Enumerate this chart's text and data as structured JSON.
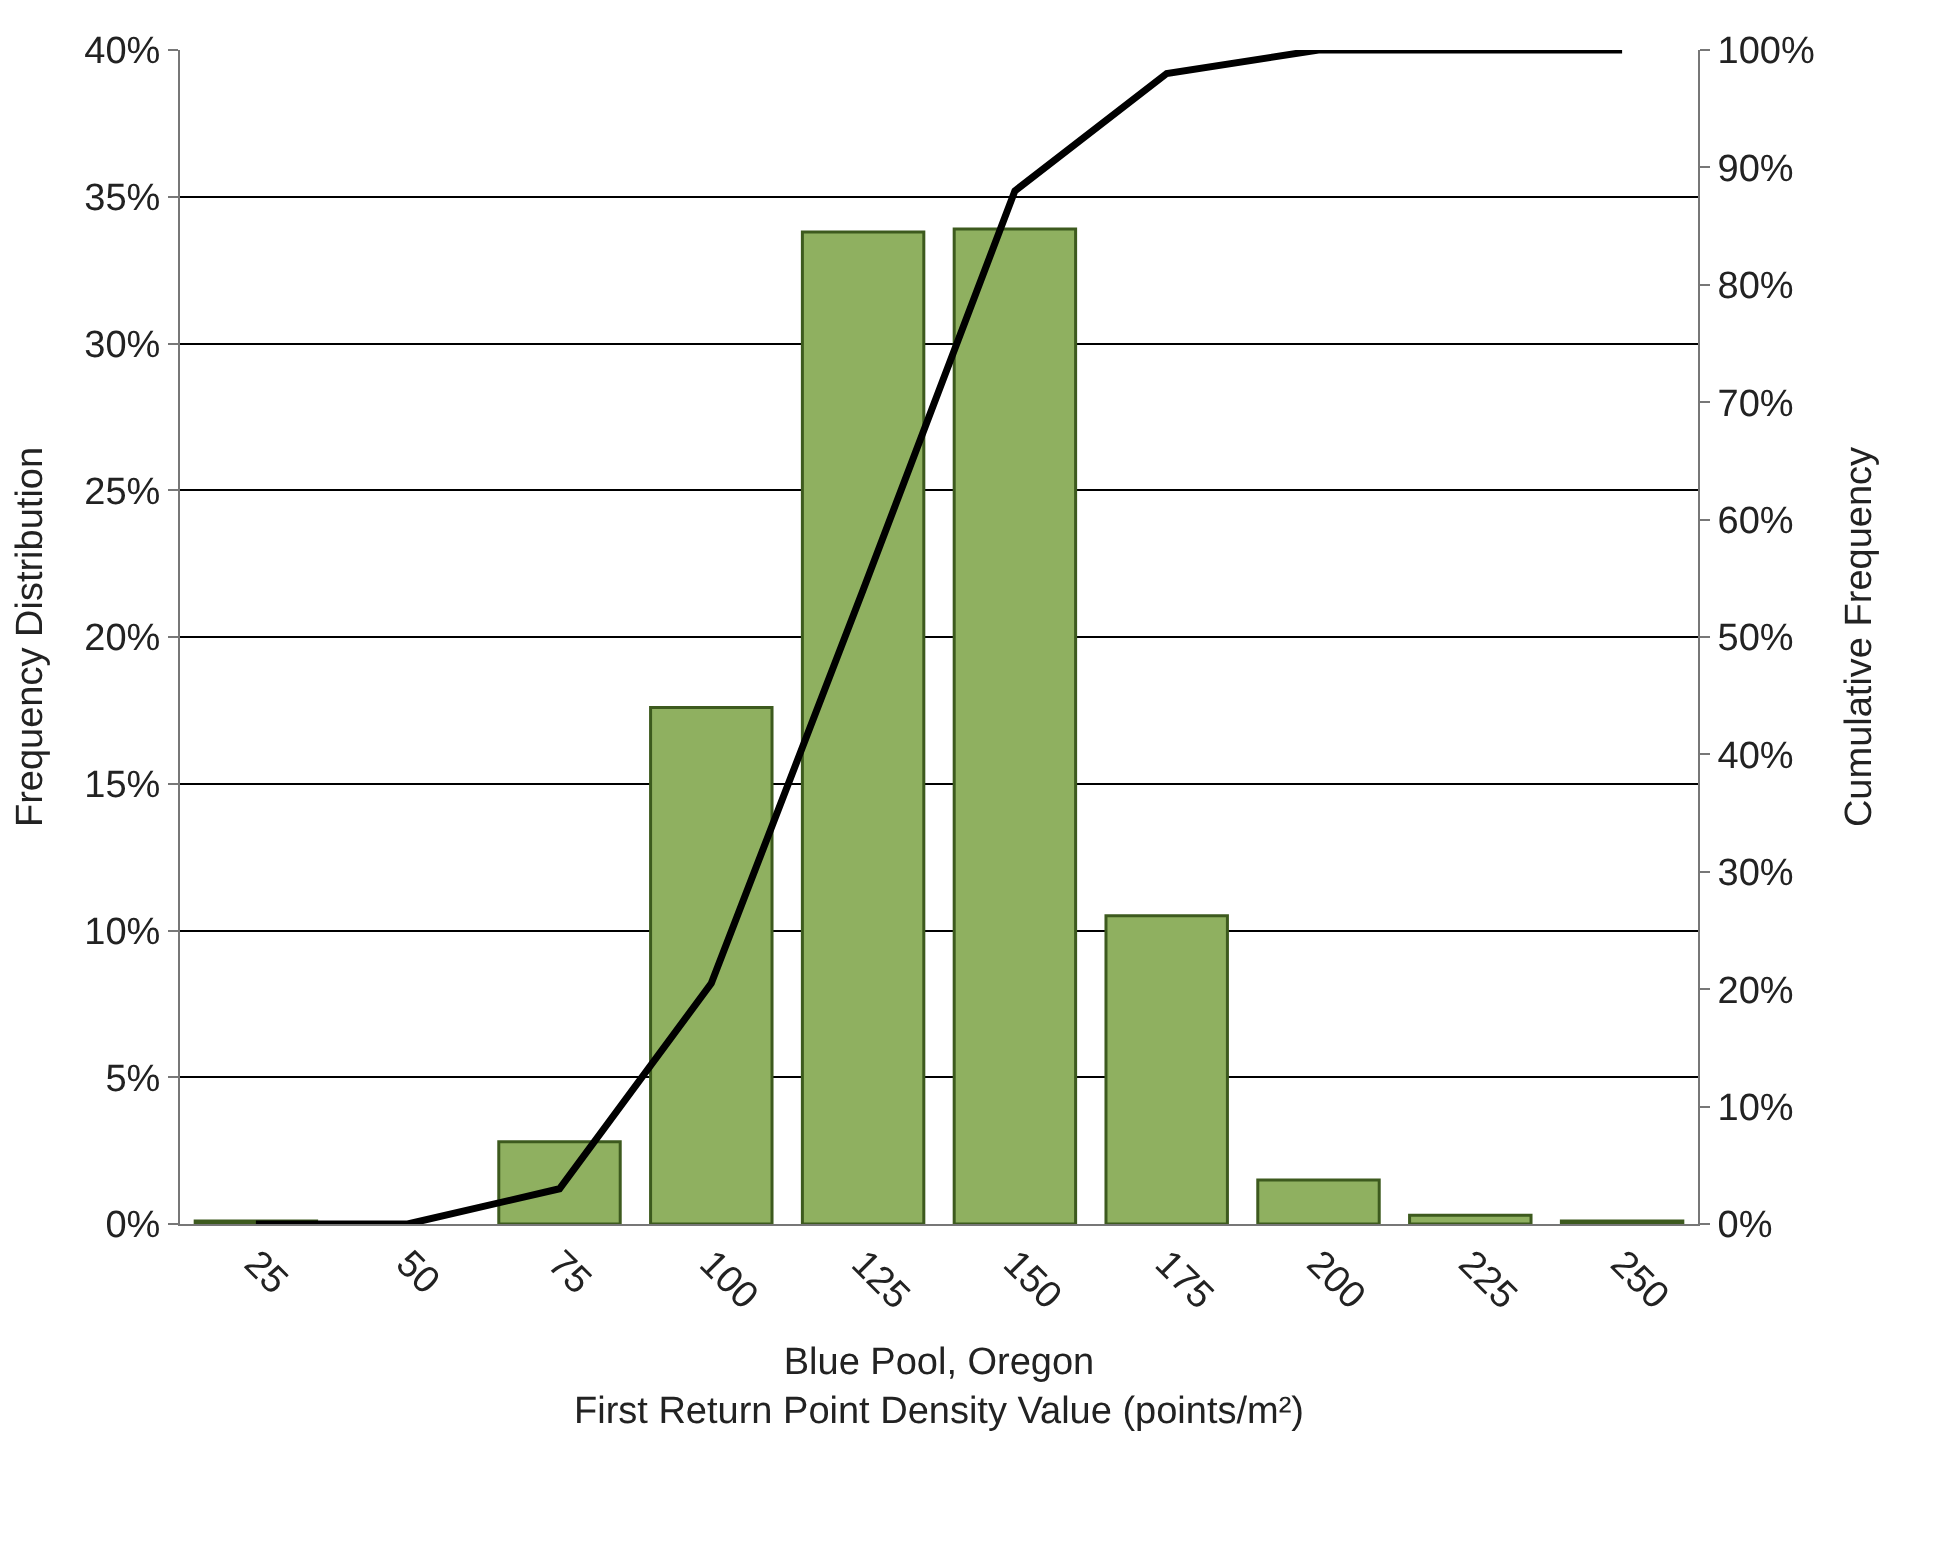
{
  "chart_data": {
    "type": "bar",
    "xlabel": "Blue Pool, Oregon\nFirst Return Point Density Value (points/m²)",
    "ylabel": "Frequency Distribution",
    "y2label": "Cumulative Frequency",
    "categories": [
      "25",
      "50",
      "75",
      "100",
      "125",
      "150",
      "175",
      "200",
      "225",
      "250"
    ],
    "series": [
      {
        "color": "#8fb060",
        "values": [
          0.1,
          null,
          2.8,
          17.6,
          33.8,
          33.9,
          10.5,
          1.5,
          0.3,
          0.1
        ]
      },
      {
        "type": "line",
        "axis": "y2",
        "color": "#000000",
        "values": [
          0,
          0,
          3,
          20.5,
          54,
          88,
          98,
          100,
          100,
          100
        ]
      }
    ],
    "ylim": [
      0,
      40
    ],
    "yticks": [
      {
        "value": 0,
        "label": "0%"
      },
      {
        "value": 5,
        "label": "5%"
      },
      {
        "value": 10,
        "label": "10%"
      },
      {
        "value": 15,
        "label": "15%"
      },
      {
        "value": 20,
        "label": "20%"
      },
      {
        "value": 25,
        "label": "25%"
      },
      {
        "value": 30,
        "label": "30%"
      },
      {
        "value": 35,
        "label": "35%"
      },
      {
        "value": 40,
        "label": "40%"
      }
    ],
    "y2lim": [
      0,
      100
    ],
    "y2ticks": [
      {
        "value": 0,
        "label": "0%"
      },
      {
        "value": 10,
        "label": "10%"
      },
      {
        "value": 20,
        "label": "20%"
      },
      {
        "value": 30,
        "label": "30%"
      },
      {
        "value": 40,
        "label": "40%"
      },
      {
        "value": 50,
        "label": "50%"
      },
      {
        "value": 60,
        "label": "60%"
      },
      {
        "value": 70,
        "label": "70%"
      },
      {
        "value": 80,
        "label": "80%"
      },
      {
        "value": 90,
        "label": "90%"
      },
      {
        "value": 100,
        "label": "100%"
      }
    ],
    "grid": "y",
    "legend": false,
    "marker": "none",
    "line_style": "solid"
  }
}
